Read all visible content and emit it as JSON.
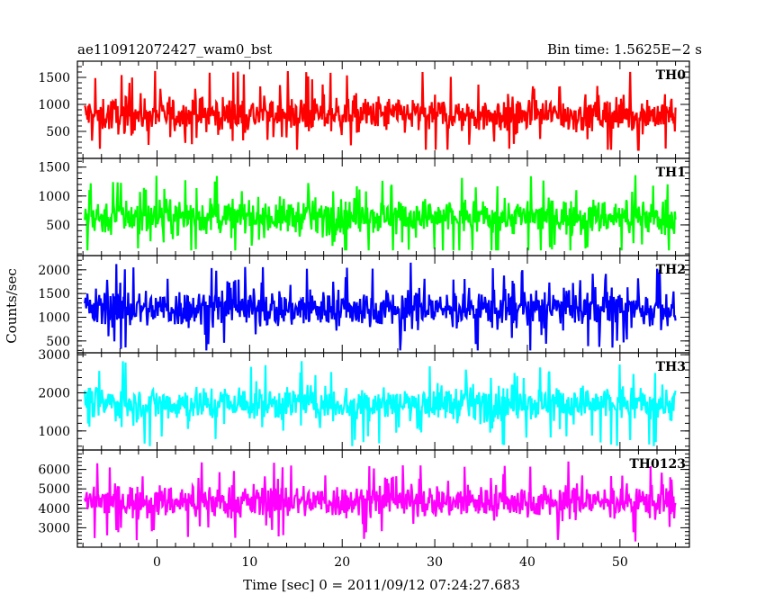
{
  "chart_data": {
    "type": "line",
    "title_left": "ae110912072427_wam0_bst",
    "title_right": "Bin time: 1.5625E−2 s",
    "xlabel": "Time [sec] 0 = 2011/09/12 07:24:27.683",
    "ylabel": "Counts/sec",
    "xlim": [
      -8.6,
      57.5
    ],
    "x_ticks": [
      0,
      10,
      20,
      30,
      40,
      50
    ],
    "grid": false,
    "series": [
      {
        "name": "TH0",
        "color": "#ff0000",
        "ylim": [
          0,
          1800
        ],
        "y_ticks": [
          500,
          1000,
          1500
        ],
        "x_start": -7.8,
        "x_end": 56.0,
        "mean": 810,
        "spread": 270,
        "min": 160,
        "max": 1780
      },
      {
        "name": "TH1",
        "color": "#00ff00",
        "ylim": [
          -30,
          1650
        ],
        "y_ticks": [
          500,
          1000,
          1500
        ],
        "x_start": -7.8,
        "x_end": 56.0,
        "mean": 640,
        "spread": 250,
        "min": 60,
        "max": 1620
      },
      {
        "name": "TH2",
        "color": "#0000ff",
        "ylim": [
          250,
          2300
        ],
        "y_ticks": [
          500,
          1000,
          1500,
          2000
        ],
        "x_start": -7.8,
        "x_end": 56.0,
        "mean": 1180,
        "spread": 330,
        "min": 300,
        "max": 2280
      },
      {
        "name": "TH3",
        "color": "#00ffff",
        "ylim": [
          500,
          3050
        ],
        "y_ticks": [
          1000,
          2000,
          3000
        ],
        "x_start": -7.8,
        "x_end": 56.0,
        "mean": 1720,
        "spread": 380,
        "min": 600,
        "max": 3000
      },
      {
        "name": "TH0123",
        "color": "#ff00ff",
        "ylim": [
          2000,
          7000
        ],
        "y_ticks": [
          3000,
          4000,
          5000,
          6000
        ],
        "x_start": -7.8,
        "x_end": 56.0,
        "mean": 4350,
        "spread": 700,
        "min": 2150,
        "max": 6950
      }
    ]
  }
}
